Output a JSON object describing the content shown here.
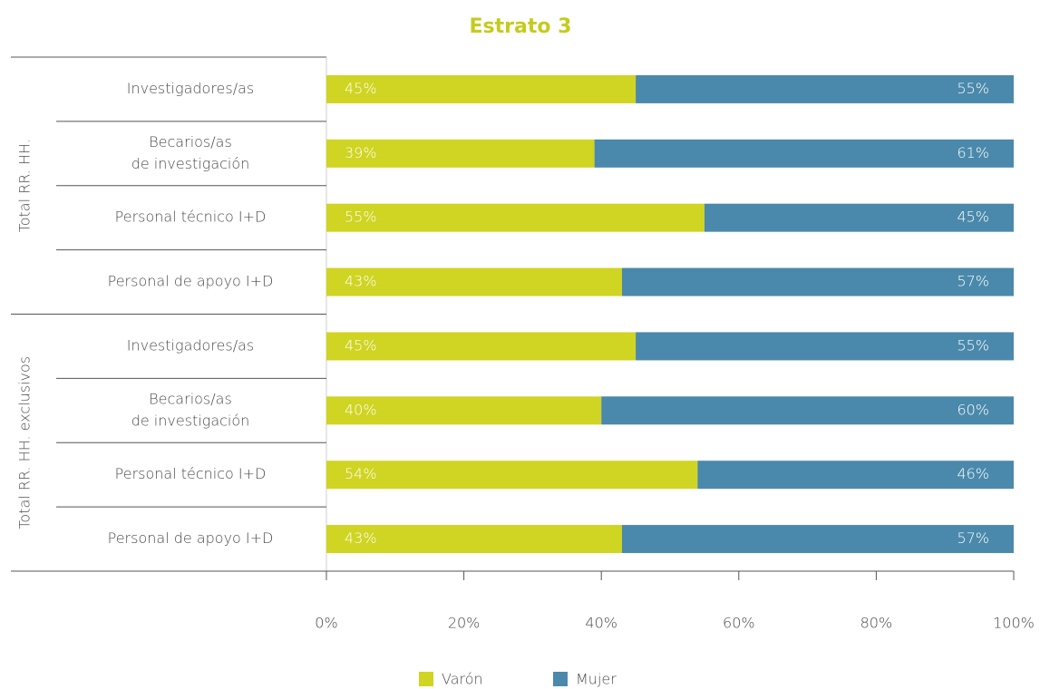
{
  "chart_data": {
    "type": "stacked-bar-horizontal",
    "title": "Estrato 3",
    "groups": [
      {
        "name": "Total RR. HH.",
        "categories": [
          [
            "Investigadores/as"
          ],
          [
            "Becarios/as",
            "de investigación"
          ],
          [
            "Personal técnico I+D"
          ],
          [
            "Personal de apoyo I+D"
          ]
        ]
      },
      {
        "name": "Total RR. HH. exclusivos",
        "categories": [
          [
            "Investigadores/as"
          ],
          [
            "Becarios/as",
            "de investigación"
          ],
          [
            "Personal técnico I+D"
          ],
          [
            "Personal de apoyo I+D"
          ]
        ]
      }
    ],
    "series": [
      {
        "name": "Varón",
        "color": "#d0d422",
        "values": [
          45,
          39,
          55,
          43,
          45,
          40,
          54,
          43
        ],
        "value_labels": [
          "45%",
          "39%",
          "55%",
          "43%",
          "45%",
          "40%",
          "54%",
          "43%"
        ]
      },
      {
        "name": "Mujer",
        "color": "#4a89ab",
        "values": [
          55,
          61,
          45,
          57,
          55,
          60,
          46,
          57
        ],
        "value_labels": [
          "55%",
          "61%",
          "45%",
          "57%",
          "55%",
          "60%",
          "46%",
          "57%"
        ]
      }
    ],
    "xlim": [
      0,
      100
    ],
    "xticks": [
      {
        "value": 0,
        "label": "0%"
      },
      {
        "value": 20,
        "label": "20%"
      },
      {
        "value": 40,
        "label": "40%"
      },
      {
        "value": 60,
        "label": "60%"
      },
      {
        "value": 80,
        "label": "80%"
      },
      {
        "value": 100,
        "label": "100%"
      }
    ],
    "legend": "bottom"
  }
}
